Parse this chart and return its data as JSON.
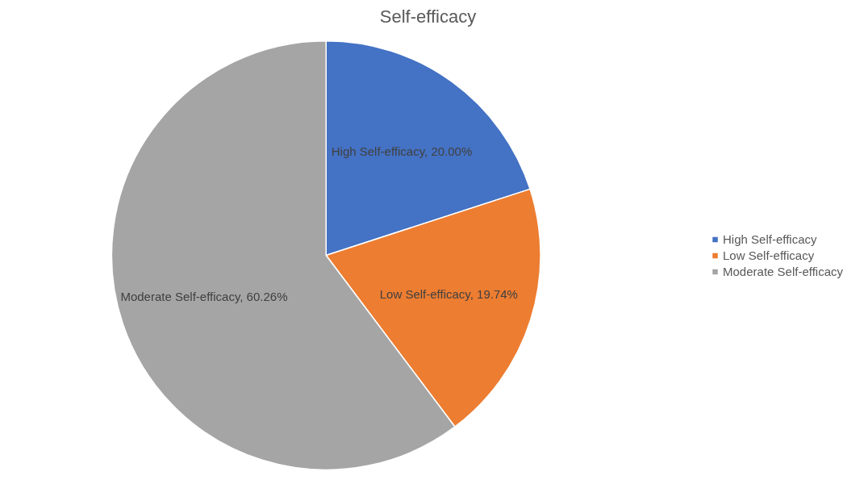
{
  "chart_data": {
    "type": "pie",
    "title": "Self-efficacy",
    "categories": [
      "High Self-efficacy",
      "Low Self-efficacy",
      "Moderate Self-efficacy"
    ],
    "values": [
      20.0,
      19.74,
      60.26
    ],
    "colors": [
      "#4472c4",
      "#ed7d31",
      "#a5a5a5"
    ],
    "value_labels": [
      "High Self-efficacy, 20.00%",
      "Low Self-efficacy, 19.74%",
      "Moderate Self-efficacy, 60.26%"
    ],
    "legend": "right"
  }
}
